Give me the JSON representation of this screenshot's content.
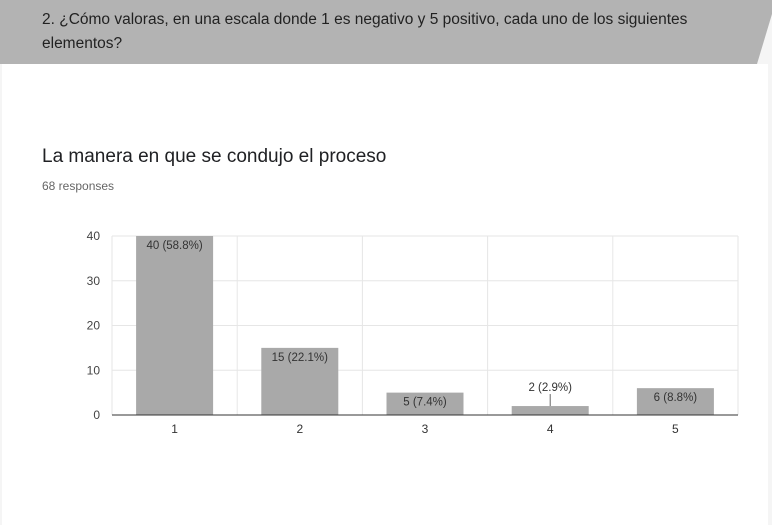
{
  "question": {
    "text": "2. ¿Cómo valoras, en una escala donde 1 es negativo y 5 positivo, cada uno de los siguientes elementos?"
  },
  "chart_card": {
    "title": "La manera en que se condujo el proceso",
    "responses_label": "68 responses"
  },
  "colors": {
    "header_band": "#b3b3b3",
    "bar": "#a9a9a9",
    "grid": "#e6e6e6"
  },
  "chart_data": {
    "type": "bar",
    "categories": [
      "1",
      "2",
      "3",
      "4",
      "5"
    ],
    "values": [
      40,
      15,
      5,
      2,
      6
    ],
    "data_labels": [
      "40 (58.8%)",
      "15 (22.1%)",
      "5 (7.4%)",
      "2 (2.9%)",
      "6 (8.8%)"
    ],
    "y_ticks": [
      0,
      10,
      20,
      30,
      40
    ],
    "ylim": [
      0,
      40
    ],
    "title": "La manera en que se condujo el proceso",
    "xlabel": "",
    "ylabel": "",
    "grid": true
  }
}
